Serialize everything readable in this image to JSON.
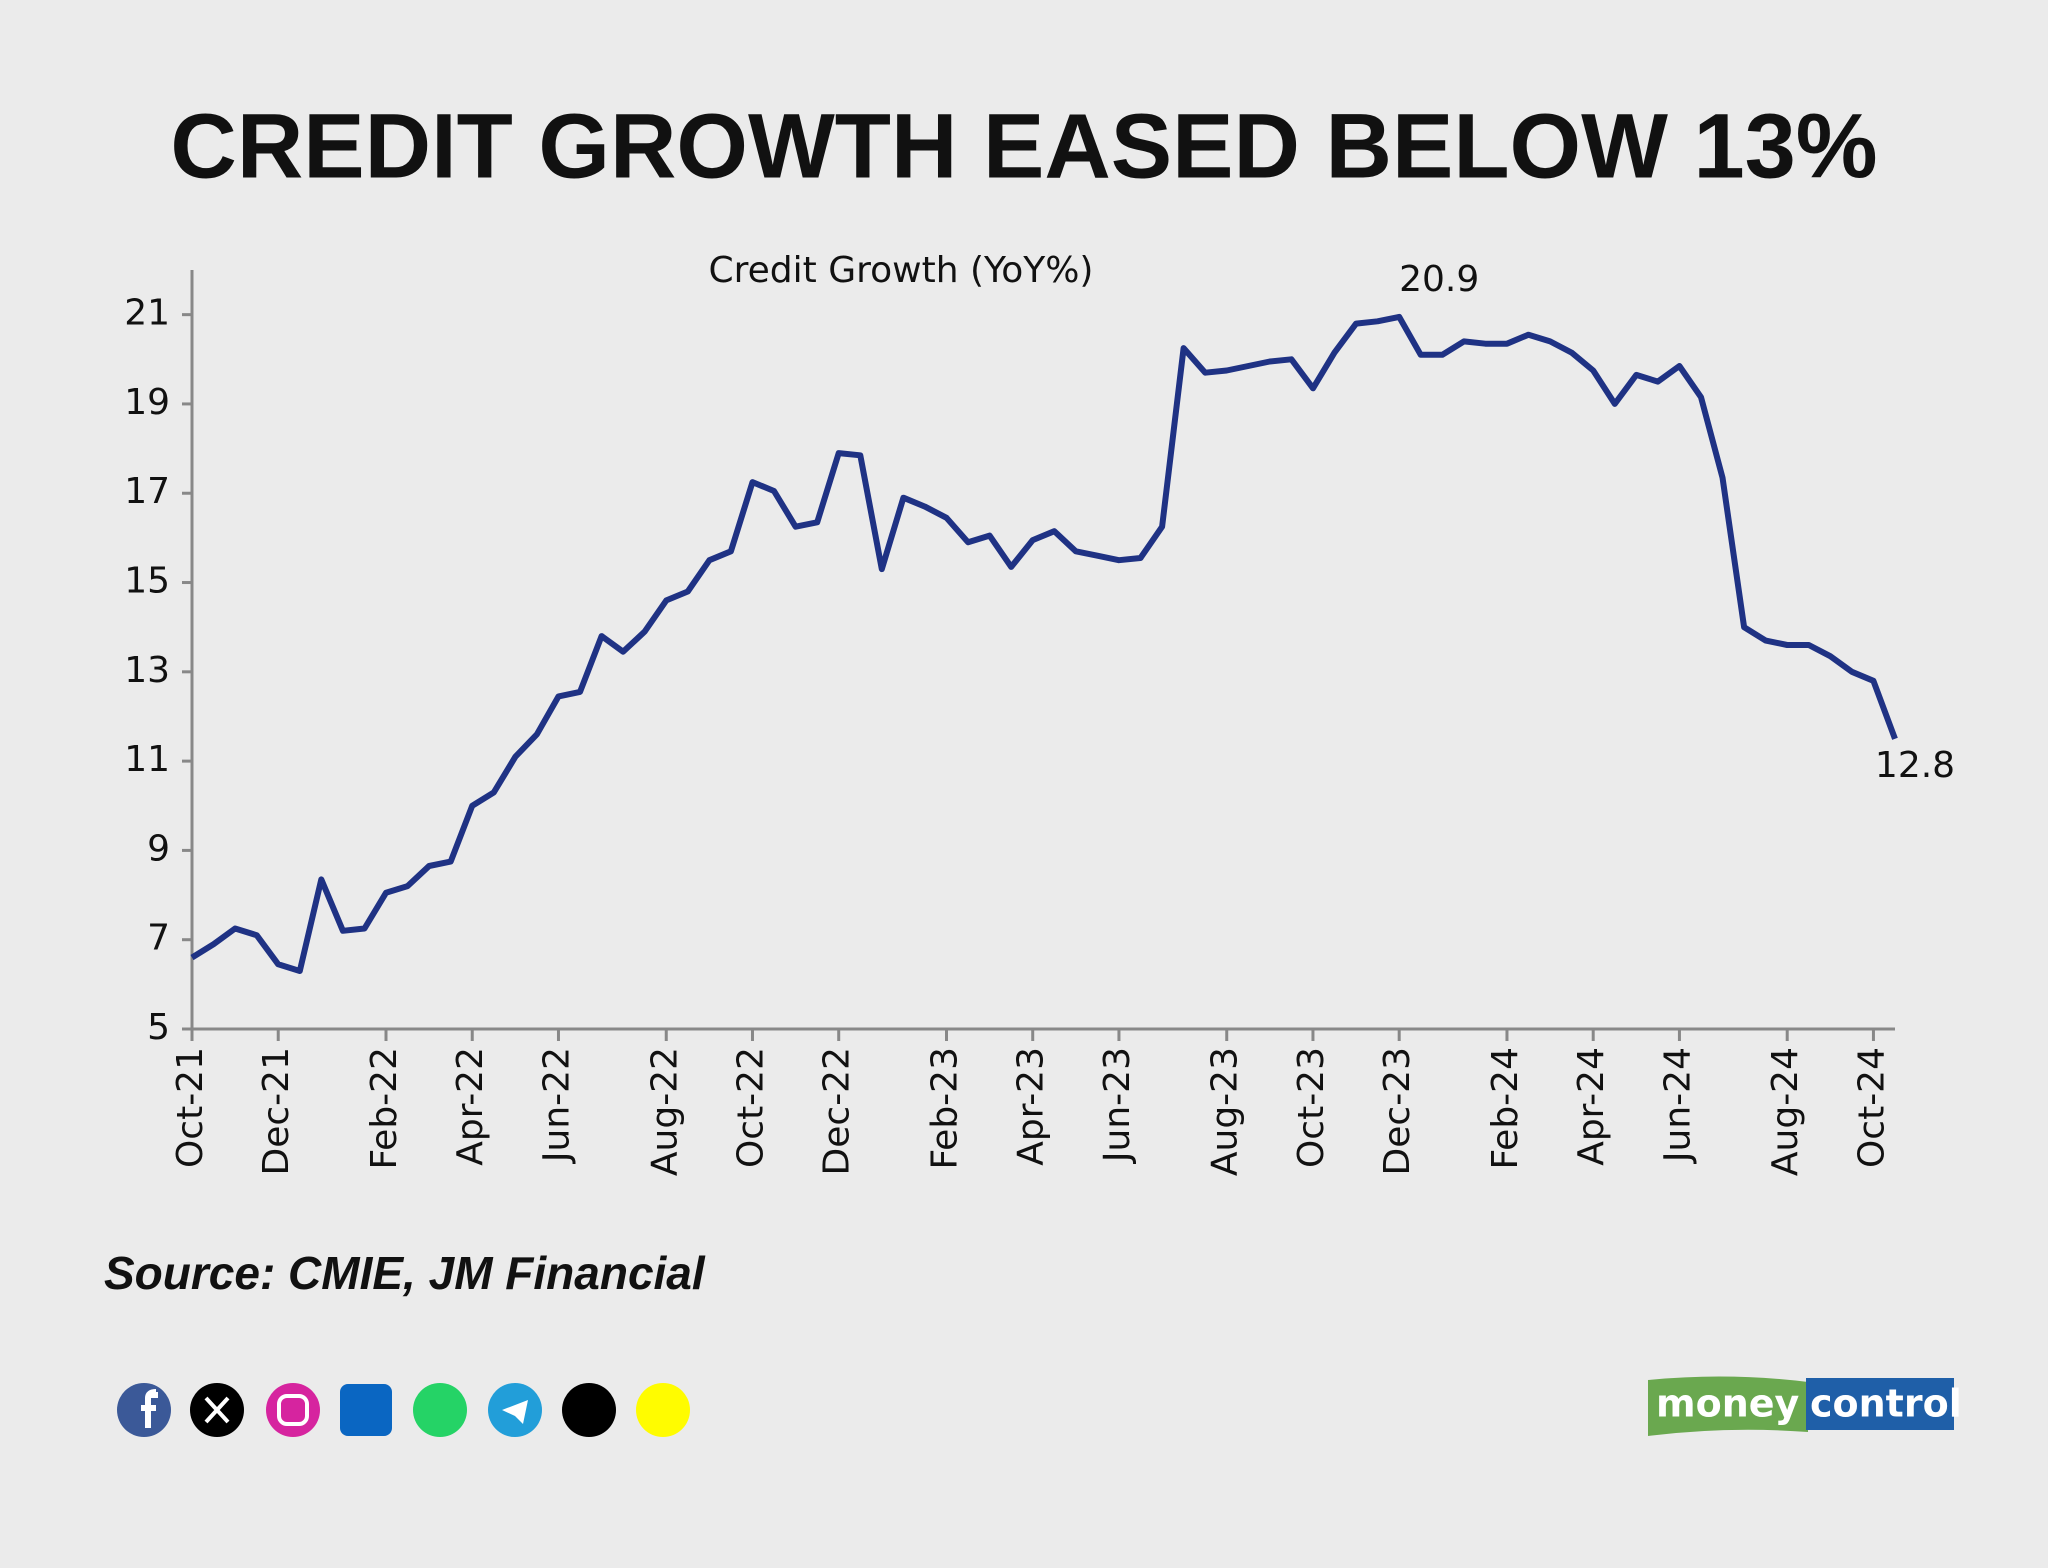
{
  "chart_data": {
    "type": "line",
    "title": "CREDIT GROWTH EASED BELOW 13%",
    "subtitle": "Credit Growth (YoY%)",
    "categories": [
      "Oct-21",
      null,
      null,
      null,
      "Dec-21",
      null,
      null,
      null,
      null,
      "Feb-22",
      null,
      null,
      null,
      "Apr-22",
      null,
      null,
      null,
      "Jun-22",
      null,
      null,
      null,
      null,
      "Aug-22",
      null,
      null,
      null,
      "Oct-22",
      null,
      null,
      null,
      "Dec-22",
      null,
      null,
      null,
      null,
      "Feb-23",
      null,
      null,
      null,
      "Apr-23",
      null,
      null,
      null,
      "Jun-23",
      null,
      null,
      null,
      null,
      "Aug-23",
      null,
      null,
      null,
      "Oct-23",
      null,
      null,
      null,
      "Dec-23",
      null,
      null,
      null,
      null,
      "Feb-24",
      null,
      null,
      null,
      "Apr-24",
      null,
      null,
      null,
      "Jun-24",
      null,
      null,
      null,
      null,
      "Aug-24",
      null,
      null,
      null,
      "Oct-24",
      null
    ],
    "series": [
      {
        "name": "Credit Growth (YoY%)",
        "color": "#1f3284",
        "values": [
          6.6,
          6.9,
          7.25,
          7.1,
          6.45,
          6.3,
          8.35,
          7.2,
          7.25,
          8.05,
          8.2,
          8.65,
          8.75,
          10.0,
          10.3,
          11.1,
          11.6,
          12.45,
          12.55,
          13.8,
          13.45,
          13.9,
          14.6,
          14.8,
          15.5,
          15.7,
          17.25,
          17.05,
          16.25,
          16.35,
          17.9,
          17.85,
          15.3,
          16.9,
          16.7,
          16.45,
          15.9,
          16.05,
          15.35,
          15.95,
          16.15,
          15.7,
          15.6,
          15.5,
          15.55,
          16.25,
          20.25,
          19.7,
          19.75,
          19.85,
          19.95,
          20.0,
          19.35,
          20.15,
          20.8,
          20.85,
          20.95,
          20.1,
          20.1,
          20.4,
          20.35,
          20.35,
          20.55,
          20.4,
          20.15,
          19.75,
          19.0,
          19.65,
          19.5,
          19.85,
          19.15,
          17.35,
          14.0,
          13.7,
          13.6,
          13.6,
          13.35,
          13.0,
          12.8,
          11.5
        ]
      }
    ],
    "ylim": [
      5,
      22
    ],
    "yticks": [
      5,
      7,
      9,
      11,
      13,
      15,
      17,
      19,
      21
    ],
    "annotations": [
      {
        "text": "20.9"
      },
      {
        "text": "12.8"
      }
    ],
    "grid": false
  },
  "footer": {
    "source": "Source: CMIE, JM Financial",
    "logo_left": "money",
    "logo_right": "control"
  }
}
